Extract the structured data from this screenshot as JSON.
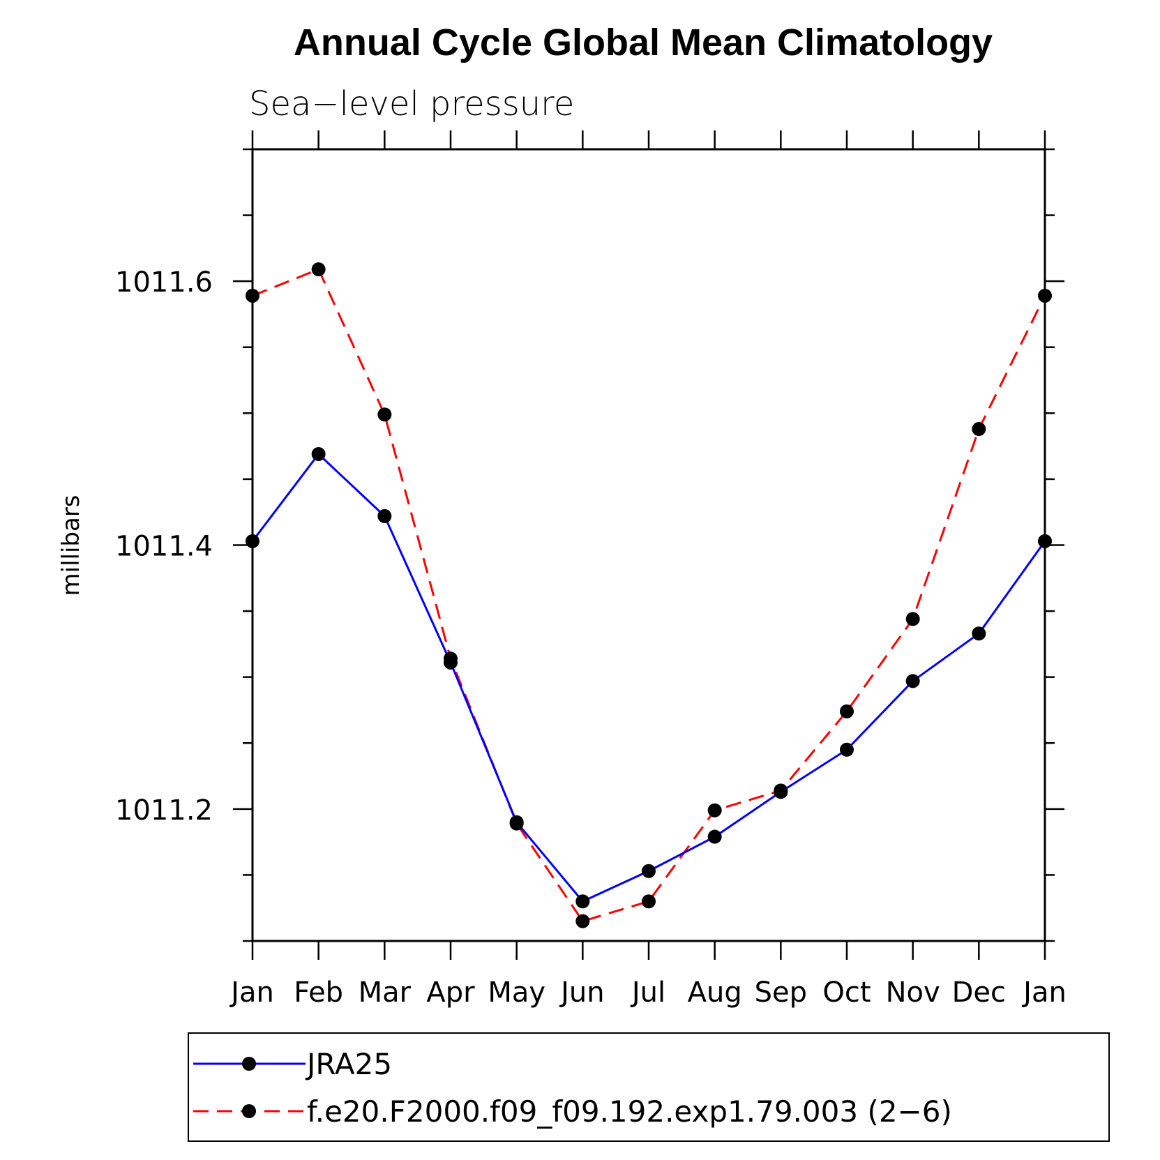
{
  "chart_data": {
    "type": "line",
    "title": "Annual Cycle Global Mean Climatology",
    "subtitle": "Sea−level pressure",
    "xlabel": "",
    "ylabel": "millibars",
    "categories": [
      "Jan",
      "Feb",
      "Mar",
      "Apr",
      "May",
      "Jun",
      "Jul",
      "Aug",
      "Sep",
      "Oct",
      "Nov",
      "Dec",
      "Jan"
    ],
    "ylim": [
      1011.1,
      1011.7
    ],
    "yticks": [
      1011.2,
      1011.4,
      1011.6
    ],
    "ytick_labels": [
      "1011.2",
      "1011.4",
      "1011.6"
    ],
    "yminor_step": 0.05,
    "series": [
      {
        "name": "JRA25",
        "color": "#0000ff",
        "style": "solid",
        "values": [
          1011.403,
          1011.469,
          1011.422,
          1011.311,
          1011.19,
          1011.13,
          1011.153,
          1011.179,
          1011.213,
          1011.245,
          1011.297,
          1011.333,
          1011.403
        ]
      },
      {
        "name": "f.e20.F2000.f09_f09.192.exp1.79.003 (2−6)",
        "color": "#ff0000",
        "style": "dashed",
        "values": [
          1011.589,
          1011.609,
          1011.499,
          1011.314,
          1011.189,
          1011.115,
          1011.13,
          1011.199,
          1011.214,
          1011.274,
          1011.344,
          1011.488,
          1011.589
        ]
      }
    ],
    "marker": "filled-circle",
    "marker_color": "#000000",
    "legend_position": "bottom"
  }
}
